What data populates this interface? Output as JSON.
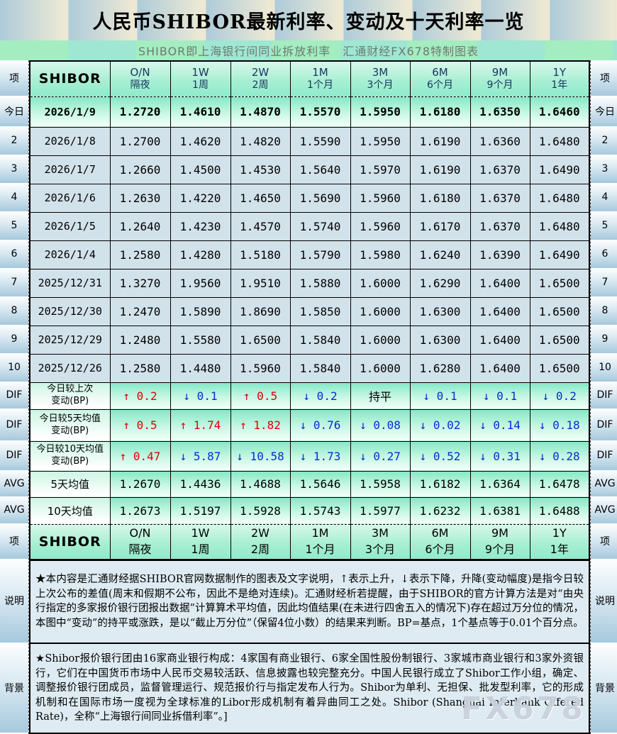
{
  "title": "人民币SHIBOR最新利率、变动及十天利率一览",
  "subtitle": "SHIBOR即上海银行间同业拆放利率　汇通财经FX678特制图表",
  "watermark": "FX678",
  "side_labels": [
    "项",
    "今日",
    "2",
    "3",
    "4",
    "5",
    "6",
    "7",
    "8",
    "9",
    "10",
    "DIF",
    "DIF",
    "DIF",
    "AVG",
    "AVG",
    "项",
    "说明",
    "背景"
  ],
  "notes": [
    {
      "label": "说明",
      "text": "★本内容是汇通财经据SHIBOR官网数据制作的图表及文字说明，↑表示上升，↓表示下降，升降(变动幅度)是指今日较上次公布的差值(周末和假期不公布，因此不是绝对连续)。汇通财经析若提醒，由于SHIBOR的官方计算方法是对“由央行指定的多家报价银行团报出数据”计算算术平均值，因此均值结果(在未进行四舍五入的情况下)存在超过万分位的情况，本图中“变动”的持平或涨跌，是以“截止万分位”（保留4位小数）的结果来判断。BP=基点，1个基点等于0.01个百分点。"
    },
    {
      "label": "背景",
      "text": "★Shibor报价银行团由16家商业银行构成：4家国有商业银行、6家全国性股份制银行、3家城市商业银行和3家外资银行，它们在中国货币市场中人民币交易较活跃、信息披露也较完整充分。中国人民银行成立了Shibor工作小组，确定、调整报价银行团成员，监督管理运行、规范报价行与指定发布人行为。Shibor为单利、无担保、批发型利率，它的形成机制和在国际市场一度视为全球标准的Libor形成机制有着异曲同工之处。Shibor (Shanghai Interbank Offered Rate)，全称“上海银行间同业拆借利率”。]"
    }
  ],
  "colors": {
    "up_red": "#e00000",
    "down_blue": "#0030cc",
    "mint_top": "#84e8c6",
    "mint_bottom": "#f4fffa",
    "data_row_blue": "#d2e2eb",
    "sidebar_bottom": "#a6c9dd",
    "title_stripe_blue": "#aecbd9",
    "title_stripe_beige": "#ece8d4",
    "subtitle_green": "#a4edc1",
    "note_bg": "#deebf2"
  },
  "chart_data": {
    "type": "table",
    "corner_label": "项",
    "row_header": "SHIBOR",
    "columns": [
      {
        "code": "O/N",
        "name": "隔夜"
      },
      {
        "code": "1W",
        "name": "1周"
      },
      {
        "code": "2W",
        "name": "2周"
      },
      {
        "code": "1M",
        "name": "1个月"
      },
      {
        "code": "3M",
        "name": "3个月"
      },
      {
        "code": "6M",
        "name": "6个月"
      },
      {
        "code": "9M",
        "name": "9个月"
      },
      {
        "code": "1Y",
        "name": "1年"
      }
    ],
    "rate_rows": [
      {
        "side": "今日",
        "date": "2026/1/9",
        "today": true,
        "values": [
          "1.2720",
          "1.4610",
          "1.4870",
          "1.5570",
          "1.5950",
          "1.6180",
          "1.6350",
          "1.6460"
        ]
      },
      {
        "side": "2",
        "date": "2026/1/8",
        "values": [
          "1.2700",
          "1.4620",
          "1.4820",
          "1.5590",
          "1.5950",
          "1.6190",
          "1.6360",
          "1.6480"
        ]
      },
      {
        "side": "3",
        "date": "2026/1/7",
        "values": [
          "1.2660",
          "1.4500",
          "1.4530",
          "1.5640",
          "1.5970",
          "1.6190",
          "1.6370",
          "1.6490"
        ]
      },
      {
        "side": "4",
        "date": "2026/1/6",
        "values": [
          "1.2630",
          "1.4220",
          "1.4650",
          "1.5690",
          "1.5960",
          "1.6180",
          "1.6370",
          "1.6480"
        ]
      },
      {
        "side": "5",
        "date": "2026/1/5",
        "values": [
          "1.2640",
          "1.4230",
          "1.4570",
          "1.5740",
          "1.5960",
          "1.6170",
          "1.6370",
          "1.6480"
        ]
      },
      {
        "side": "6",
        "date": "2026/1/4",
        "values": [
          "1.2580",
          "1.4280",
          "1.5180",
          "1.5790",
          "1.5980",
          "1.6240",
          "1.6390",
          "1.6490"
        ]
      },
      {
        "side": "7",
        "date": "2025/12/31",
        "values": [
          "1.3270",
          "1.9560",
          "1.9510",
          "1.5880",
          "1.6000",
          "1.6290",
          "1.6400",
          "1.6500"
        ]
      },
      {
        "side": "8",
        "date": "2025/12/30",
        "values": [
          "1.2470",
          "1.5890",
          "1.8690",
          "1.5850",
          "1.6000",
          "1.6300",
          "1.6400",
          "1.6500"
        ]
      },
      {
        "side": "9",
        "date": "2025/12/29",
        "values": [
          "1.2480",
          "1.5580",
          "1.6500",
          "1.5840",
          "1.6000",
          "1.6300",
          "1.6400",
          "1.6500"
        ]
      },
      {
        "side": "10",
        "date": "2025/12/26",
        "values": [
          "1.2580",
          "1.4480",
          "1.5960",
          "1.5840",
          "1.6000",
          "1.6280",
          "1.6400",
          "1.6500"
        ]
      }
    ],
    "dif_rows": [
      {
        "side": "DIF",
        "label_lines": [
          "今日较上次",
          "变动(BP)"
        ],
        "values": [
          {
            "dir": "up",
            "num": "0.2"
          },
          {
            "dir": "down",
            "num": "0.1"
          },
          {
            "dir": "up",
            "num": "0.5"
          },
          {
            "dir": "down",
            "num": "0.2"
          },
          {
            "dir": "flat",
            "num": "持平"
          },
          {
            "dir": "down",
            "num": "0.1"
          },
          {
            "dir": "down",
            "num": "0.1"
          },
          {
            "dir": "down",
            "num": "0.2"
          }
        ]
      },
      {
        "side": "DIF",
        "label_lines": [
          "今日较5天均值",
          "变动(BP)"
        ],
        "values": [
          {
            "dir": "up",
            "num": "0.5"
          },
          {
            "dir": "up",
            "num": "1.74"
          },
          {
            "dir": "up",
            "num": "1.82"
          },
          {
            "dir": "down",
            "num": "0.76"
          },
          {
            "dir": "down",
            "num": "0.08"
          },
          {
            "dir": "down",
            "num": "0.02"
          },
          {
            "dir": "down",
            "num": "0.14"
          },
          {
            "dir": "down",
            "num": "0.18"
          }
        ]
      },
      {
        "side": "DIF",
        "label_lines": [
          "今日较10天均值",
          "变动(BP)"
        ],
        "values": [
          {
            "dir": "up",
            "num": "0.47"
          },
          {
            "dir": "down",
            "num": "5.87"
          },
          {
            "dir": "down",
            "num": "10.58"
          },
          {
            "dir": "down",
            "num": "1.73"
          },
          {
            "dir": "down",
            "num": "0.27"
          },
          {
            "dir": "down",
            "num": "0.52"
          },
          {
            "dir": "down",
            "num": "0.31"
          },
          {
            "dir": "down",
            "num": "0.28"
          }
        ]
      }
    ],
    "avg_rows": [
      {
        "side": "AVG",
        "label": "5天均值",
        "values": [
          "1.2670",
          "1.4436",
          "1.4688",
          "1.5646",
          "1.5958",
          "1.6182",
          "1.6364",
          "1.6478"
        ]
      },
      {
        "side": "AVG",
        "label": "10天均值",
        "values": [
          "1.2673",
          "1.5197",
          "1.5928",
          "1.5743",
          "1.5977",
          "1.6232",
          "1.6381",
          "1.6488"
        ]
      }
    ],
    "arrows": {
      "up": "↑",
      "down": "↓"
    }
  }
}
